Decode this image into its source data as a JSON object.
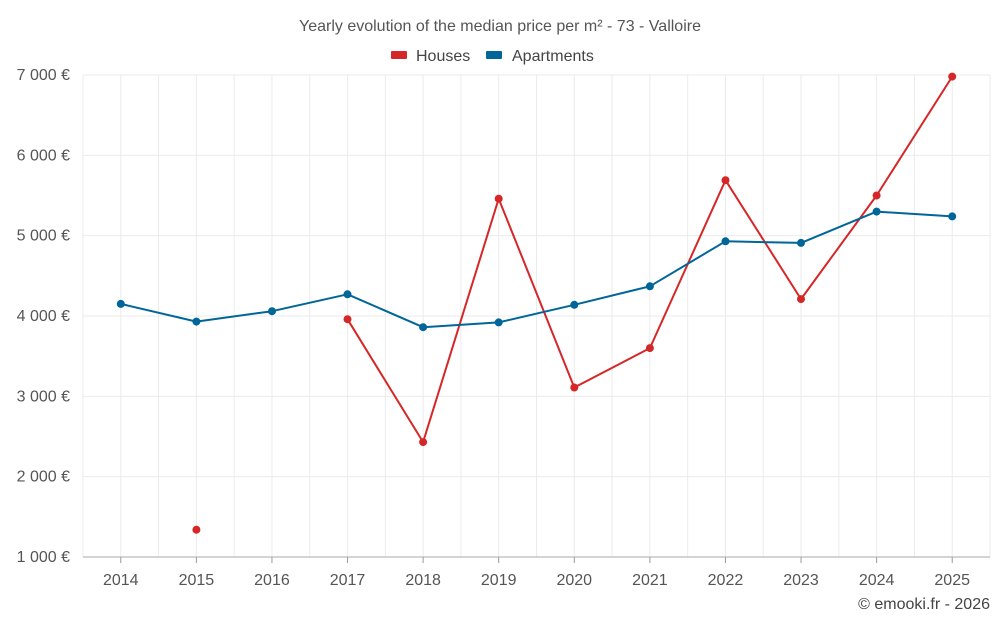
{
  "chart_data": {
    "type": "line",
    "title": "Yearly evolution of the median price per m² - 73 - Valloire",
    "xlabel": "",
    "ylabel": "",
    "categories": [
      "2014",
      "2015",
      "2016",
      "2017",
      "2018",
      "2019",
      "2020",
      "2021",
      "2022",
      "2023",
      "2024",
      "2025"
    ],
    "ylim": [
      1000,
      7000
    ],
    "yticks": [
      1000,
      2000,
      3000,
      4000,
      5000,
      6000,
      7000
    ],
    "ytick_labels": [
      "1 000 €",
      "2 000 €",
      "3 000 €",
      "4 000 €",
      "5 000 €",
      "6 000 €",
      "7 000 €"
    ],
    "grid": true,
    "legend_position": "top-center",
    "series": [
      {
        "name": "Houses",
        "color": "#d62728",
        "values": [
          null,
          1340,
          null,
          3960,
          2430,
          5460,
          3110,
          3600,
          5690,
          4210,
          5500,
          6980
        ]
      },
      {
        "name": "Apartments",
        "color": "#006699",
        "values": [
          4150,
          3930,
          4060,
          4270,
          3860,
          3920,
          4140,
          4370,
          4930,
          4910,
          5300,
          5240
        ]
      }
    ]
  },
  "credit": "© emooki.fr - 2026"
}
